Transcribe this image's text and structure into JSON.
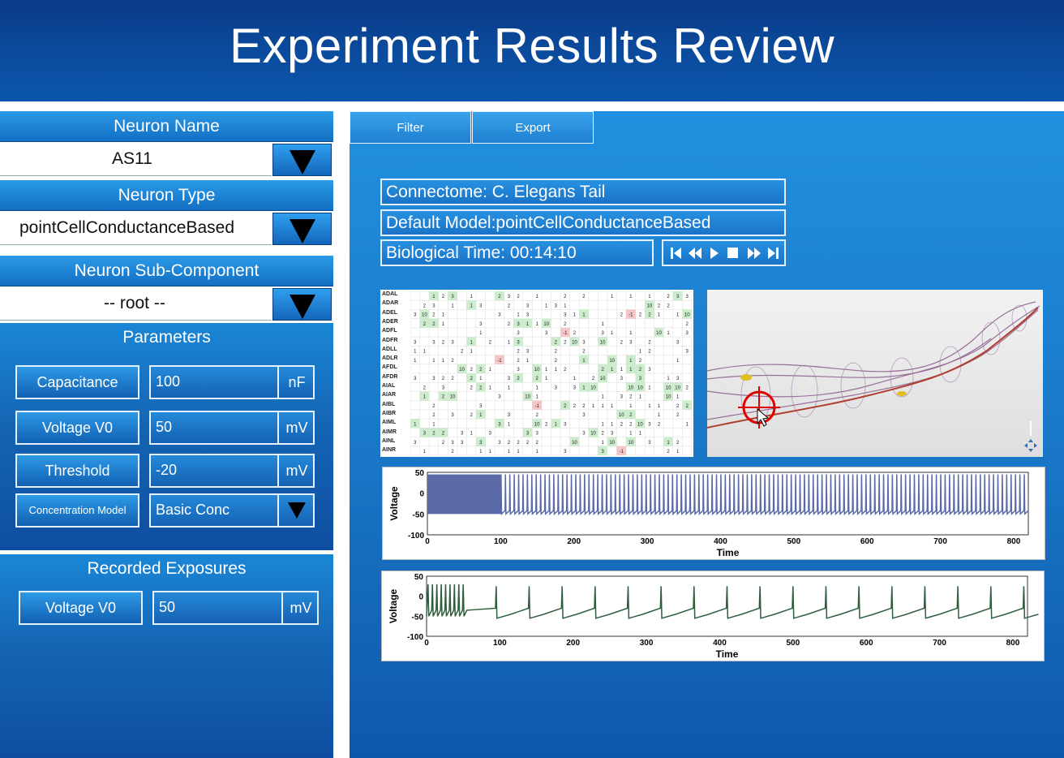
{
  "header": {
    "title": "Experiment Results Review"
  },
  "left": {
    "neuron_name": {
      "label": "Neuron Name",
      "value": "AS11"
    },
    "neuron_type": {
      "label": "Neuron Type",
      "value": "pointCellConductanceBased"
    },
    "sub_component": {
      "label": "Neuron Sub-Component",
      "value": "-- root --"
    },
    "parameters": {
      "label": "Parameters",
      "rows": [
        {
          "name": "Capacitance",
          "value": "100",
          "unit": "nF"
        },
        {
          "name": "Voltage V0",
          "value": "50",
          "unit": "mV"
        },
        {
          "name": "Threshold",
          "value": "-20",
          "unit": "mV"
        },
        {
          "name": "Concentration Model",
          "value": "Basic Conc",
          "unit": ""
        }
      ]
    },
    "recorded": {
      "label": "Recorded Exposures",
      "rows": [
        {
          "name": "Voltage V0",
          "value": "50",
          "unit": "mV"
        }
      ]
    }
  },
  "toolbar": {
    "filter": "Filter",
    "export": "Export"
  },
  "info": {
    "connectome": "Connectome: C. Elegans Tail",
    "model": "Default Model:pointCellConductanceBased",
    "time": "Biological Time: 00:14:10"
  },
  "playback_icons": [
    "skip-back-icon",
    "rewind-icon",
    "play-icon",
    "stop-icon",
    "fast-forward-icon",
    "skip-end-icon"
  ],
  "matrix": {
    "rows": [
      "ADAL",
      "ADAR",
      "ADEL",
      "ADER",
      "ADFL",
      "ADFR",
      "ADLL",
      "ADLR",
      "AFDL",
      "AFDR",
      "AIAL",
      "AIAR",
      "AIBL",
      "AIBR",
      "AIML",
      "AIMR",
      "AINL",
      "AINR"
    ]
  },
  "chart_data": [
    {
      "type": "line",
      "ylabel": "Voltage",
      "xlabel": "Time",
      "xticks": [
        "0",
        "100",
        "200",
        "300",
        "400",
        "500",
        "600",
        "700",
        "800"
      ],
      "yticks": [
        "50",
        "0",
        "-50",
        "-100"
      ],
      "xlim": [
        0,
        820
      ],
      "ylim": [
        -100,
        50
      ],
      "color": "#5a6aa8",
      "series": [
        {
          "description_values": {
            "spike_period": 6,
            "burst_end": 100,
            "peak": 45,
            "trough": -50
          }
        }
      ]
    },
    {
      "type": "line",
      "ylabel": "Voltage",
      "xlabel": "Time",
      "xticks": [
        "0",
        "100",
        "200",
        "300",
        "400",
        "500",
        "600",
        "700",
        "800"
      ],
      "yticks": [
        "50",
        "0",
        "-50",
        "-100"
      ],
      "xlim": [
        0,
        820
      ],
      "ylim": [
        -100,
        50
      ],
      "color": "#2f5e3e",
      "series": [
        {
          "description_values": {
            "spike_period": 45,
            "burst_end": 55,
            "peak": 30,
            "trough": -50
          }
        }
      ]
    }
  ]
}
